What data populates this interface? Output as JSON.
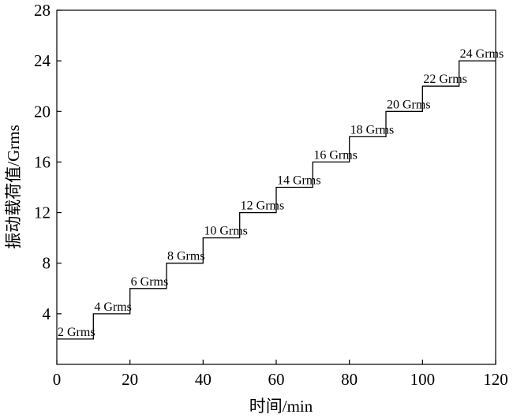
{
  "chart_data": {
    "type": "line",
    "xlabel": "时间/min",
    "ylabel": "振动载荷值/Grms",
    "xlim": [
      0,
      120
    ],
    "ylim": [
      0,
      28
    ],
    "x_ticks": [
      "0",
      "20",
      "40",
      "60",
      "80",
      "100",
      "120"
    ],
    "y_ticks": [
      "4",
      "8",
      "12",
      "16",
      "20",
      "24",
      "28"
    ],
    "grid": false,
    "series": [
      {
        "x": [
          0,
          10,
          10,
          20,
          20,
          30,
          30,
          40,
          40,
          50,
          50,
          60,
          60,
          70,
          70,
          80,
          80,
          90,
          90,
          100,
          100,
          110,
          110,
          120
        ],
        "values": [
          2,
          2,
          4,
          4,
          6,
          6,
          8,
          8,
          10,
          10,
          12,
          12,
          14,
          14,
          16,
          16,
          18,
          18,
          20,
          20,
          22,
          22,
          24,
          24
        ]
      }
    ],
    "annotations": [
      {
        "text": "2 Grms",
        "x": 0,
        "y": 2
      },
      {
        "text": "4 Grms",
        "x": 10,
        "y": 4
      },
      {
        "text": "6 Grms",
        "x": 20,
        "y": 6
      },
      {
        "text": "8 Grms",
        "x": 30,
        "y": 8
      },
      {
        "text": "10 Grms",
        "x": 40,
        "y": 10
      },
      {
        "text": "12 Grms",
        "x": 50,
        "y": 12
      },
      {
        "text": "14 Grms",
        "x": 60,
        "y": 14
      },
      {
        "text": "16 Grms",
        "x": 70,
        "y": 16
      },
      {
        "text": "18 Grms",
        "x": 80,
        "y": 18
      },
      {
        "text": "20 Grms",
        "x": 90,
        "y": 20
      },
      {
        "text": "22 Grms",
        "x": 100,
        "y": 22
      },
      {
        "text": "24 Grms",
        "x": 110,
        "y": 24
      }
    ]
  }
}
